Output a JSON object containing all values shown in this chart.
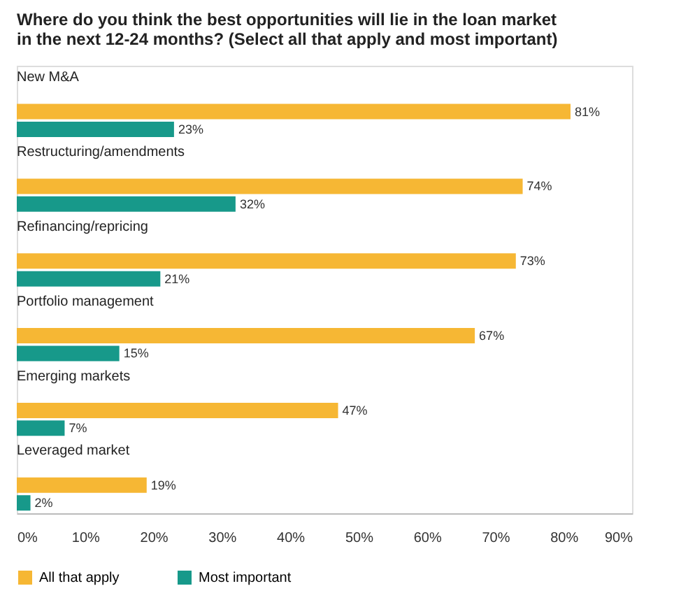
{
  "chart_data": {
    "type": "bar",
    "orientation": "horizontal",
    "title": "Where do you think the best opportunities will lie in the loan market in the next 12-24 months? (Select all that apply and most important)",
    "categories": [
      "New M&A",
      "Restructuring/amendments",
      "Refinancing/repricing",
      "Portfolio management",
      "Emerging markets",
      "Leveraged market"
    ],
    "series": [
      {
        "name": "All that apply",
        "color": "#f6b734",
        "values": [
          81,
          74,
          73,
          67,
          47,
          19
        ],
        "value_labels": [
          "81%",
          "74%",
          "73%",
          "67%",
          "47%",
          "19%"
        ]
      },
      {
        "name": "Most important",
        "color": "#17998a",
        "values": [
          23,
          32,
          21,
          15,
          7,
          2
        ],
        "value_labels": [
          "23%",
          "32%",
          "21%",
          "15%",
          "7%",
          "2%"
        ]
      }
    ],
    "xlim": [
      0,
      90
    ],
    "xticks": [
      {
        "value": 0,
        "label": "0%"
      },
      {
        "value": 10,
        "label": "10%"
      },
      {
        "value": 20,
        "label": "20%"
      },
      {
        "value": 30,
        "label": "30%"
      },
      {
        "value": 40,
        "label": "40%"
      },
      {
        "value": 50,
        "label": "50%"
      },
      {
        "value": 60,
        "label": "60%"
      },
      {
        "value": 70,
        "label": "70%"
      },
      {
        "value": 80,
        "label": "80%"
      },
      {
        "value": 90,
        "label": "90%"
      }
    ],
    "grid": false,
    "legend": "bottom"
  }
}
